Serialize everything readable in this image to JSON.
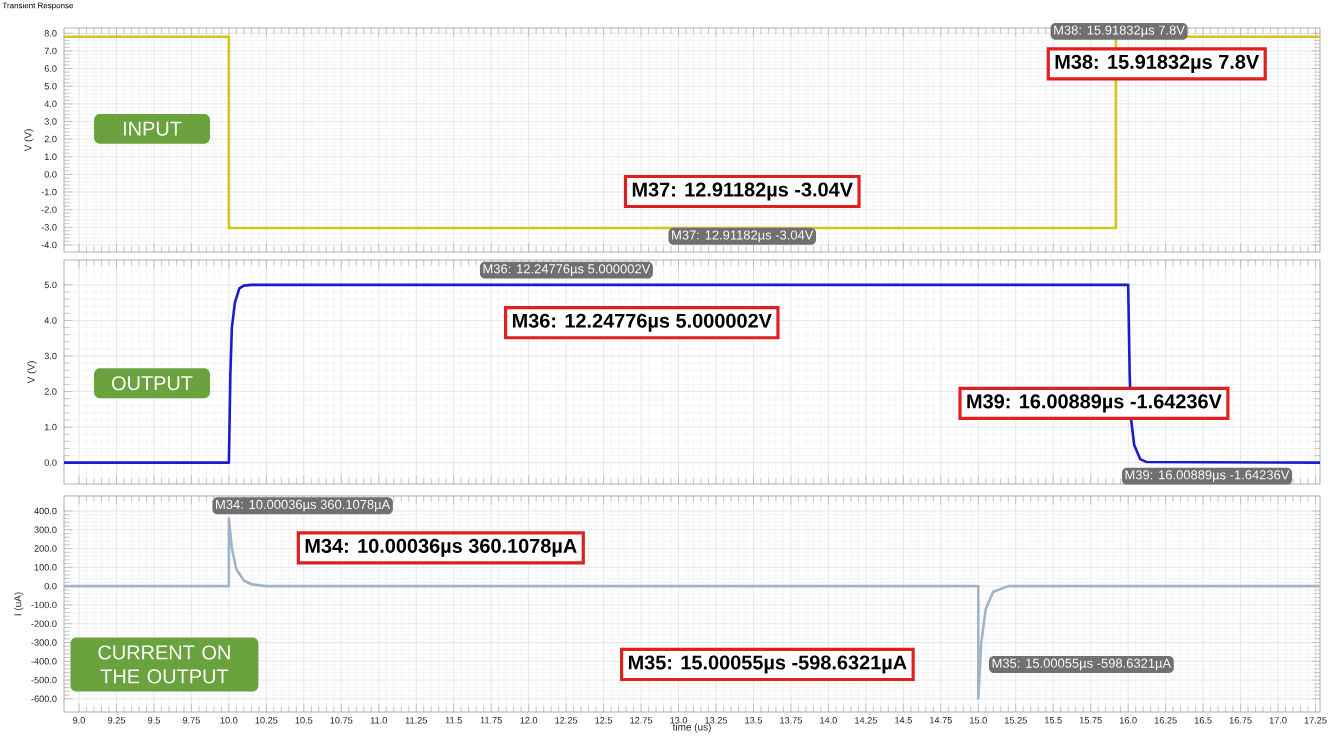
{
  "chart_data": [
    {
      "type": "line",
      "title": "Transient Response",
      "ylabel": "V (V)",
      "tick_labels": "y",
      "grid": true,
      "xlim": [
        8.9,
        17.28
      ],
      "ylim": [
        -4.4,
        8.3
      ],
      "xticks": [
        9,
        9.25,
        9.5,
        9.75,
        10,
        10.25,
        10.5,
        10.75,
        11,
        11.25,
        11.5,
        11.75,
        12,
        12.25,
        12.5,
        12.75,
        13,
        13.25,
        13.5,
        13.75,
        14,
        14.25,
        14.5,
        14.75,
        15,
        15.25,
        15.5,
        15.75,
        16,
        16.25,
        16.5,
        16.75,
        17,
        17.25
      ],
      "yticks": [
        {
          "value": -4,
          "label": "-4.0"
        },
        {
          "value": -3,
          "label": "-3.0"
        },
        {
          "value": -2,
          "label": "-2.0"
        },
        {
          "value": -1,
          "label": "-1.0"
        },
        {
          "value": 0,
          "label": "0.0"
        },
        {
          "value": 1,
          "label": "1.0"
        },
        {
          "value": 2,
          "label": "2.0"
        },
        {
          "value": 3,
          "label": "3.0"
        },
        {
          "value": 4,
          "label": "4.0"
        },
        {
          "value": 5,
          "label": "5.0"
        },
        {
          "value": 6,
          "label": "6.0"
        },
        {
          "value": 7,
          "label": "7.0"
        },
        {
          "value": 8,
          "label": "8.0"
        }
      ],
      "series": [
        {
          "color": "#d9c21c",
          "x": [
            8.9,
            10.0,
            10.0,
            15.918,
            15.918,
            17.28
          ],
          "values": [
            7.8,
            7.8,
            -3.04,
            -3.04,
            7.8,
            7.8
          ]
        }
      ],
      "annotations": [
        "INPUT",
        "M37: 12.91182µs -3.04V",
        "M38: 15.91832µs 7.8V"
      ]
    },
    {
      "type": "line",
      "ylabel": "V (V)",
      "tick_labels": "y",
      "grid": true,
      "xlim": [
        8.9,
        17.28
      ],
      "ylim": [
        -0.6,
        5.7
      ],
      "xticks": [
        9,
        9.25,
        9.5,
        9.75,
        10,
        10.25,
        10.5,
        10.75,
        11,
        11.25,
        11.5,
        11.75,
        12,
        12.25,
        12.5,
        12.75,
        13,
        13.25,
        13.5,
        13.75,
        14,
        14.25,
        14.5,
        14.75,
        15,
        15.25,
        15.5,
        15.75,
        16,
        16.25,
        16.5,
        16.75,
        17,
        17.25
      ],
      "yticks": [
        {
          "value": 0,
          "label": "0.0"
        },
        {
          "value": 1,
          "label": "1.0"
        },
        {
          "value": 2,
          "label": "2.0"
        },
        {
          "value": 3,
          "label": "3.0"
        },
        {
          "value": 4,
          "label": "4.0"
        },
        {
          "value": 5,
          "label": "5.0"
        }
      ],
      "series": [
        {
          "color": "#1a1ad0",
          "x": [
            8.9,
            10.0,
            10.01,
            10.02,
            10.04,
            10.07,
            10.1,
            10.15,
            16.0,
            16.01,
            16.02,
            16.04,
            16.08,
            16.12,
            17.28
          ],
          "values": [
            0,
            0,
            2.5,
            3.8,
            4.5,
            4.9,
            4.98,
            5.0,
            5.0,
            2.5,
            1.2,
            0.5,
            0.1,
            0.02,
            0
          ]
        }
      ],
      "annotations": [
        "OUTPUT",
        "M36: 12.24776µs 5.000002V",
        "M39: 16.00889µs -1.64236V"
      ]
    },
    {
      "type": "line",
      "ylabel": "I (uA)",
      "xlabel": "time (us)",
      "grid": true,
      "xlim": [
        8.9,
        17.28
      ],
      "ylim": [
        -670,
        480
      ],
      "xticks": [
        {
          "value": 9,
          "label": "9.0"
        },
        9.25,
        9.5,
        9.75,
        {
          "value": 10,
          "label": "10.0"
        },
        10.25,
        10.5,
        10.75,
        {
          "value": 11,
          "label": "11.0"
        },
        11.25,
        11.5,
        11.75,
        {
          "value": 12,
          "label": "12.0"
        },
        12.25,
        12.5,
        12.75,
        {
          "value": 13,
          "label": "13.0"
        },
        13.25,
        13.5,
        13.75,
        {
          "value": 14,
          "label": "14.0"
        },
        14.25,
        14.5,
        14.75,
        {
          "value": 15,
          "label": "15.0"
        },
        15.25,
        15.5,
        15.75,
        {
          "value": 16,
          "label": "16.0"
        },
        16.25,
        16.5,
        16.75,
        {
          "value": 17,
          "label": "17.0"
        },
        17.25
      ],
      "yticks": [
        {
          "value": -600,
          "label": "-600.0"
        },
        {
          "value": -500,
          "label": "-500.0"
        },
        {
          "value": -400,
          "label": "-400.0"
        },
        {
          "value": -300,
          "label": "-300.0"
        },
        {
          "value": -200,
          "label": "-200.0"
        },
        {
          "value": -100,
          "label": "-100.0"
        },
        {
          "value": 0,
          "label": "0.0"
        },
        {
          "value": 100,
          "label": "100.0"
        },
        {
          "value": 200,
          "label": "200.0"
        },
        {
          "value": 300,
          "label": "300.0"
        },
        {
          "value": 400,
          "label": "400.0"
        }
      ],
      "series": [
        {
          "color": "#9fb4c8",
          "x": [
            8.9,
            10.0,
            10.0,
            10.02,
            10.05,
            10.1,
            10.15,
            10.25,
            15.0,
            15.0,
            15.02,
            15.05,
            15.1,
            15.2,
            17.28
          ],
          "values": [
            0,
            0,
            360,
            200,
            90,
            30,
            10,
            0,
            0,
            -598,
            -300,
            -120,
            -30,
            0,
            0
          ]
        }
      ],
      "annotations": [
        "CURRENT ON THE OUTPUT",
        "M34: 10.00036µs 360.1078µA",
        "M35: 15.00055µs -598.6321µA"
      ]
    }
  ]
}
